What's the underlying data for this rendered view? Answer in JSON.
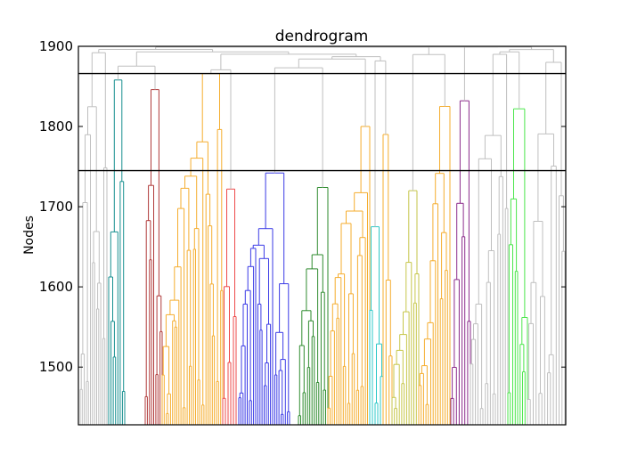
{
  "chart_data": {
    "type": "dendrogram",
    "title": "dendrogram",
    "xlabel": "",
    "ylabel": "Nodes",
    "ylim": [
      1428,
      1900
    ],
    "y_ticks": [
      1500,
      1600,
      1700,
      1800,
      1900
    ],
    "grid": false,
    "horizontal_lines": [
      1866,
      1745
    ],
    "colors": {
      "gray": "#bfbfbf",
      "teal": "#168f8f",
      "red_dark": "#b03a3a",
      "orange": "#f5ad2e",
      "red": "#ee4a4a",
      "blue": "#3a3ae6",
      "green": "#2e8b2e",
      "cyan": "#2ec8c8",
      "olive": "#c6c64a",
      "purple": "#8b2a8b",
      "lime": "#4be64b"
    },
    "clusters": [
      {
        "name": "teal",
        "color": "#168f8f",
        "x_range": [
          122,
          140
        ],
        "leaves": 8,
        "merge_height": 1858
      },
      {
        "name": "red_dark",
        "color": "#b03a3a",
        "x_range": [
          163,
          182
        ],
        "leaves": 9,
        "merge_height": 1846
      },
      {
        "name": "orange",
        "color": "#f5ad2e",
        "x_range": [
          182,
          250
        ],
        "leaves": 30,
        "merge_height": 1866
      },
      {
        "name": "red",
        "color": "#ee4a4a",
        "x_range": [
          250,
          265
        ],
        "leaves": 6,
        "merge_height": 1722
      },
      {
        "name": "blue",
        "color": "#3a3ae6",
        "x_range": [
          268,
          325
        ],
        "leaves": 25,
        "merge_height": 1742
      },
      {
        "name": "green",
        "color": "#2e8b2e",
        "x_range": [
          335,
          368
        ],
        "leaves": 14,
        "merge_height": 1724
      },
      {
        "name": "orange_b",
        "color": "#f5ad2e",
        "x_range": [
          368,
          415
        ],
        "leaves": 20,
        "merge_height": 1800
      },
      {
        "name": "cyan",
        "color": "#2ec8c8",
        "x_range": [
          415,
          430
        ],
        "leaves": 6,
        "merge_height": 1675
      },
      {
        "name": "orange_c",
        "color": "#f5ad2e",
        "x_range": [
          430,
          440
        ],
        "leaves": 4,
        "merge_height": 1790
      },
      {
        "name": "olive",
        "color": "#c6c64a",
        "x_range": [
          440,
          470
        ],
        "leaves": 12,
        "merge_height": 1720
      },
      {
        "name": "orange_d",
        "color": "#f5ad2e",
        "x_range": [
          470,
          505
        ],
        "leaves": 14,
        "merge_height": 1825
      },
      {
        "name": "purple",
        "color": "#8b2a8b",
        "x_range": [
          506,
          528
        ],
        "leaves": 8,
        "merge_height": 1832
      },
      {
        "name": "gray_b",
        "color": "#bfbfbf",
        "x_range": [
          528,
          570
        ],
        "leaves": 16,
        "merge_height": 1890
      },
      {
        "name": "lime",
        "color": "#4be64b",
        "x_range": [
          570,
          592
        ],
        "leaves": 9,
        "merge_height": 1822
      },
      {
        "name": "gray_c",
        "color": "#bfbfbf",
        "x_range": [
          592,
          634
        ],
        "leaves": 14,
        "merge_height": 1880
      }
    ]
  }
}
